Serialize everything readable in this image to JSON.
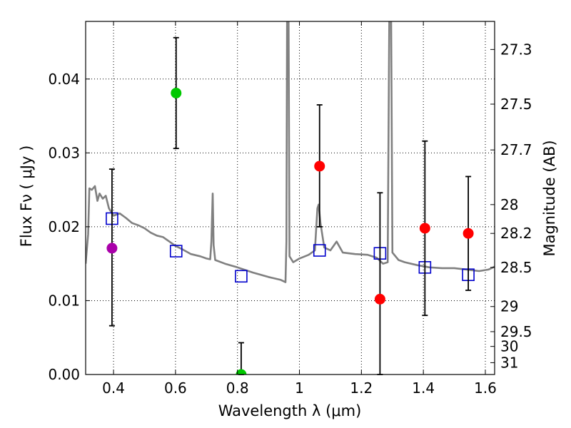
{
  "chart_data": {
    "type": "scatter",
    "xlabel": "Wavelength  λ (μm)",
    "ylabel": "Flux  Fν  ( μJy )",
    "ylabel_right": "Magnitude (AB)",
    "xlim": [
      0.31,
      1.63
    ],
    "ylim": [
      0.0,
      0.0478
    ],
    "grid": true,
    "x_ticks": [
      0.4,
      0.6,
      0.8,
      1.0,
      1.2,
      1.4,
      1.6
    ],
    "x_tick_labels": [
      "0.4",
      "0.6",
      "0.8",
      "1",
      "1.2",
      "1.4",
      "1.6"
    ],
    "y_ticks": [
      0.0,
      0.01,
      0.02,
      0.03,
      0.04
    ],
    "y_tick_labels": [
      "0.00",
      "0.01",
      "0.02",
      "0.03",
      "0.04"
    ],
    "right_ticks": [
      {
        "label": "27.3",
        "flux": 0.044
      },
      {
        "label": "27.5",
        "flux": 0.0366
      },
      {
        "label": "27.7",
        "flux": 0.0304
      },
      {
        "label": "28",
        "flux": 0.023
      },
      {
        "label": "28.2",
        "flux": 0.0191
      },
      {
        "label": "28.5",
        "flux": 0.0145
      },
      {
        "label": "29",
        "flux": 0.0092
      },
      {
        "label": "29.5",
        "flux": 0.0058
      },
      {
        "label": "30",
        "flux": 0.0038
      },
      {
        "label": "31",
        "flux": 0.0016
      }
    ],
    "observed": [
      {
        "x": 0.395,
        "y": 0.0171,
        "yerr_low": 0.0066,
        "yerr_high": 0.0278,
        "color": "#aa00aa"
      },
      {
        "x": 0.602,
        "y": 0.0381,
        "yerr_low": 0.0306,
        "yerr_high": 0.0456,
        "color": "#00c800"
      },
      {
        "x": 0.812,
        "y": 0.0,
        "yerr_low": 0.0,
        "yerr_high": 0.0043,
        "color": "#00c800"
      },
      {
        "x": 1.065,
        "y": 0.0282,
        "yerr_low": 0.02,
        "yerr_high": 0.0365,
        "color": "#ff0000"
      },
      {
        "x": 1.26,
        "y": 0.0102,
        "yerr_low": 0.0,
        "yerr_high": 0.0246,
        "color": "#ff0000"
      },
      {
        "x": 1.405,
        "y": 0.0198,
        "yerr_low": 0.008,
        "yerr_high": 0.0316,
        "color": "#ff0000"
      },
      {
        "x": 1.545,
        "y": 0.0191,
        "yerr_low": 0.0114,
        "yerr_high": 0.0268,
        "color": "#ff0000"
      }
    ],
    "model_points": [
      {
        "x": 0.395,
        "y": 0.0211
      },
      {
        "x": 0.602,
        "y": 0.0167
      },
      {
        "x": 0.812,
        "y": 0.0133
      },
      {
        "x": 1.065,
        "y": 0.0168
      },
      {
        "x": 1.26,
        "y": 0.0164
      },
      {
        "x": 1.405,
        "y": 0.0145
      },
      {
        "x": 1.545,
        "y": 0.0135
      }
    ],
    "sed_curve": [
      [
        0.31,
        0.015
      ],
      [
        0.318,
        0.019
      ],
      [
        0.322,
        0.0252
      ],
      [
        0.33,
        0.025
      ],
      [
        0.34,
        0.0255
      ],
      [
        0.348,
        0.0235
      ],
      [
        0.355,
        0.0245
      ],
      [
        0.365,
        0.0238
      ],
      [
        0.375,
        0.0242
      ],
      [
        0.385,
        0.0225
      ],
      [
        0.4,
        0.0215
      ],
      [
        0.42,
        0.0218
      ],
      [
        0.44,
        0.0212
      ],
      [
        0.46,
        0.0205
      ],
      [
        0.48,
        0.0202
      ],
      [
        0.5,
        0.0198
      ],
      [
        0.52,
        0.0192
      ],
      [
        0.54,
        0.0188
      ],
      [
        0.56,
        0.0186
      ],
      [
        0.58,
        0.018
      ],
      [
        0.6,
        0.0174
      ],
      [
        0.62,
        0.017
      ],
      [
        0.65,
        0.0163
      ],
      [
        0.68,
        0.016
      ],
      [
        0.7,
        0.0157
      ],
      [
        0.712,
        0.0156
      ],
      [
        0.716,
        0.018
      ],
      [
        0.72,
        0.0245
      ],
      [
        0.723,
        0.0175
      ],
      [
        0.728,
        0.0155
      ],
      [
        0.76,
        0.015
      ],
      [
        0.8,
        0.0145
      ],
      [
        0.85,
        0.0138
      ],
      [
        0.9,
        0.0132
      ],
      [
        0.94,
        0.0128
      ],
      [
        0.955,
        0.0125
      ],
      [
        0.958,
        0.018
      ],
      [
        0.96,
        0.048
      ],
      [
        0.965,
        0.048
      ],
      [
        0.968,
        0.016
      ],
      [
        0.98,
        0.0152
      ],
      [
        1.0,
        0.0157
      ],
      [
        1.03,
        0.0162
      ],
      [
        1.05,
        0.0168
      ],
      [
        1.058,
        0.0225
      ],
      [
        1.062,
        0.023
      ],
      [
        1.068,
        0.0205
      ],
      [
        1.08,
        0.0172
      ],
      [
        1.1,
        0.0168
      ],
      [
        1.12,
        0.018
      ],
      [
        1.14,
        0.0165
      ],
      [
        1.18,
        0.0163
      ],
      [
        1.22,
        0.0162
      ],
      [
        1.25,
        0.0158
      ],
      [
        1.27,
        0.015
      ],
      [
        1.285,
        0.0152
      ],
      [
        1.29,
        0.048
      ],
      [
        1.296,
        0.048
      ],
      [
        1.3,
        0.0165
      ],
      [
        1.32,
        0.0155
      ],
      [
        1.34,
        0.0152
      ],
      [
        1.38,
        0.0148
      ],
      [
        1.42,
        0.0145
      ],
      [
        1.46,
        0.0144
      ],
      [
        1.5,
        0.0144
      ],
      [
        1.54,
        0.0142
      ],
      [
        1.58,
        0.014
      ],
      [
        1.61,
        0.0142
      ],
      [
        1.63,
        0.0146
      ]
    ]
  }
}
